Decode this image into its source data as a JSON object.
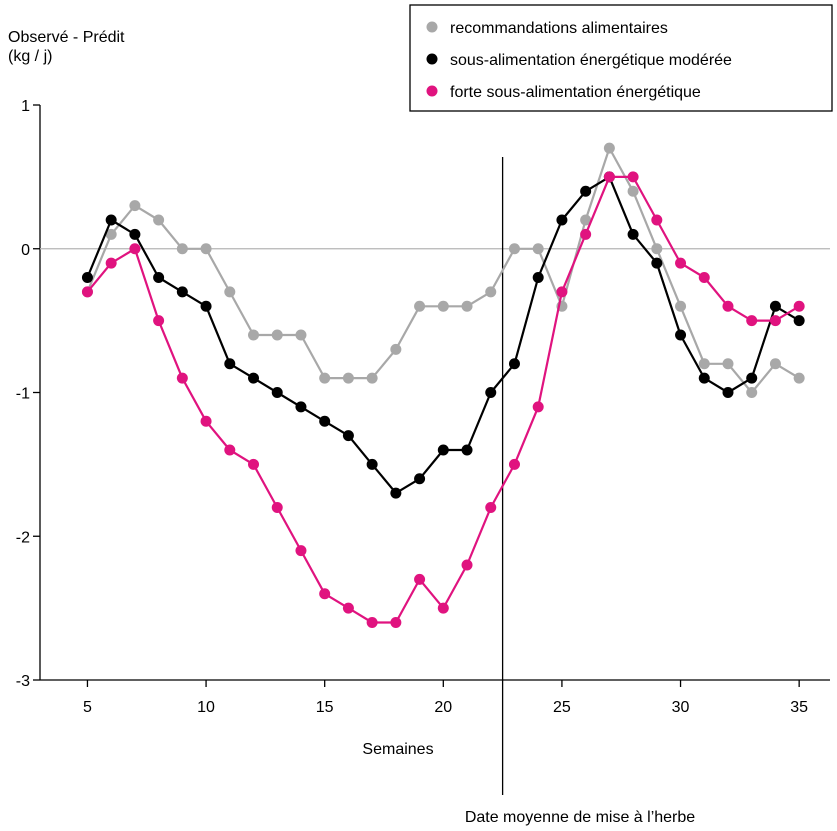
{
  "chart_data": {
    "type": "line",
    "ylabel_line1": "Observé - Prédit",
    "ylabel_line2": "(kg / j)",
    "xlabel": "Semaines",
    "annotation": "Date moyenne de mise à l’herbe",
    "annotation_x": 22.5,
    "xlim": [
      3,
      36.3
    ],
    "ylim": [
      -3,
      1
    ],
    "xticks": [
      5,
      10,
      15,
      20,
      25,
      30,
      35
    ],
    "xtick_labels": [
      "5",
      "10",
      "15",
      "20",
      "25",
      "30",
      "35"
    ],
    "yticks": [
      1,
      0,
      -1,
      -2,
      -3
    ],
    "ytick_labels": [
      "1",
      "0",
      "-1",
      "-2",
      "-3"
    ],
    "zero_line": true,
    "legend_placement": "top-right",
    "x": [
      5,
      6,
      7,
      8,
      9,
      10,
      11,
      12,
      13,
      14,
      15,
      16,
      17,
      18,
      19,
      20,
      21,
      22,
      23,
      24,
      25,
      26,
      27,
      28,
      29,
      30,
      31,
      32,
      33,
      34,
      35
    ],
    "series": [
      {
        "name": "recommandations  alimentaires",
        "color": "#a8a8a8",
        "values": [
          -0.3,
          0.1,
          0.3,
          0.2,
          0.0,
          0.0,
          -0.3,
          -0.6,
          -0.6,
          -0.6,
          -0.9,
          -0.9,
          -0.9,
          -0.7,
          -0.4,
          -0.4,
          -0.4,
          -0.3,
          0.0,
          0.0,
          -0.4,
          0.2,
          0.7,
          0.4,
          0.0,
          -0.4,
          -0.8,
          -0.8,
          -1.0,
          -0.8,
          -0.9
        ]
      },
      {
        "name": "sous-alimentation énergétique modérée",
        "color": "#000000",
        "values": [
          -0.2,
          0.2,
          0.1,
          -0.2,
          -0.3,
          -0.4,
          -0.8,
          -0.9,
          -1.0,
          -1.1,
          -1.2,
          -1.3,
          -1.5,
          -1.7,
          -1.6,
          -1.4,
          -1.4,
          -1.0,
          -0.8,
          -0.2,
          0.2,
          0.4,
          0.5,
          0.1,
          -0.1,
          -0.6,
          -0.9,
          -1.0,
          -0.9,
          -0.4,
          -0.5
        ]
      },
      {
        "name": "forte sous-alimentation énergétique",
        "color": "#e0137f",
        "values": [
          -0.3,
          -0.1,
          0.0,
          -0.5,
          -0.9,
          -1.2,
          -1.4,
          -1.5,
          -1.8,
          -2.1,
          -2.4,
          -2.5,
          -2.6,
          -2.6,
          -2.3,
          -2.5,
          -2.2,
          -1.8,
          -1.5,
          -1.1,
          -0.3,
          0.1,
          0.5,
          0.5,
          0.2,
          -0.1,
          -0.2,
          -0.4,
          -0.5,
          -0.5,
          -0.4
        ]
      }
    ]
  }
}
